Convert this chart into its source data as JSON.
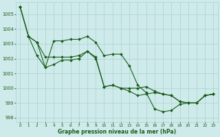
{
  "title": "Graphe pression niveau de la mer (hPa)",
  "bg_color": "#ceeaea",
  "grid_color": "#a8d4cc",
  "line_color": "#1a5c1a",
  "xlim": [
    -0.5,
    23.5
  ],
  "ylim": [
    997.7,
    1005.8
  ],
  "yticks": [
    998,
    999,
    1000,
    1001,
    1002,
    1003,
    1004,
    1005
  ],
  "xticks": [
    0,
    1,
    2,
    3,
    4,
    5,
    6,
    7,
    8,
    9,
    10,
    11,
    12,
    13,
    14,
    15,
    16,
    17,
    18,
    19,
    20,
    21,
    22,
    23
  ],
  "series1": [
    1005.5,
    1003.5,
    1003.1,
    1001.4,
    1003.2,
    1003.2,
    1003.3,
    1003.3,
    1003.5,
    1003.1,
    1002.2,
    1002.3,
    1002.3,
    1001.5,
    1000.2,
    999.7,
    998.6,
    998.4,
    998.5,
    998.9,
    999.0,
    999.0,
    999.5,
    999.6
  ],
  "series2": [
    1005.5,
    1003.5,
    1003.1,
    1002.1,
    1002.1,
    1002.1,
    1002.1,
    1002.2,
    1002.5,
    1002.1,
    1000.1,
    1000.2,
    1000.0,
    1000.0,
    1000.0,
    1000.1,
    999.8,
    999.6,
    999.5,
    999.1,
    999.0,
    999.0,
    999.5,
    999.6
  ],
  "series3": [
    1005.5,
    1003.5,
    1002.2,
    1001.4,
    1001.6,
    1001.9,
    1001.9,
    1002.0,
    1002.5,
    1002.0,
    1000.1,
    1000.2,
    1000.0,
    999.8,
    999.5,
    999.6,
    999.7,
    999.6,
    999.5,
    999.1,
    999.0,
    999.0,
    999.5,
    999.6
  ]
}
